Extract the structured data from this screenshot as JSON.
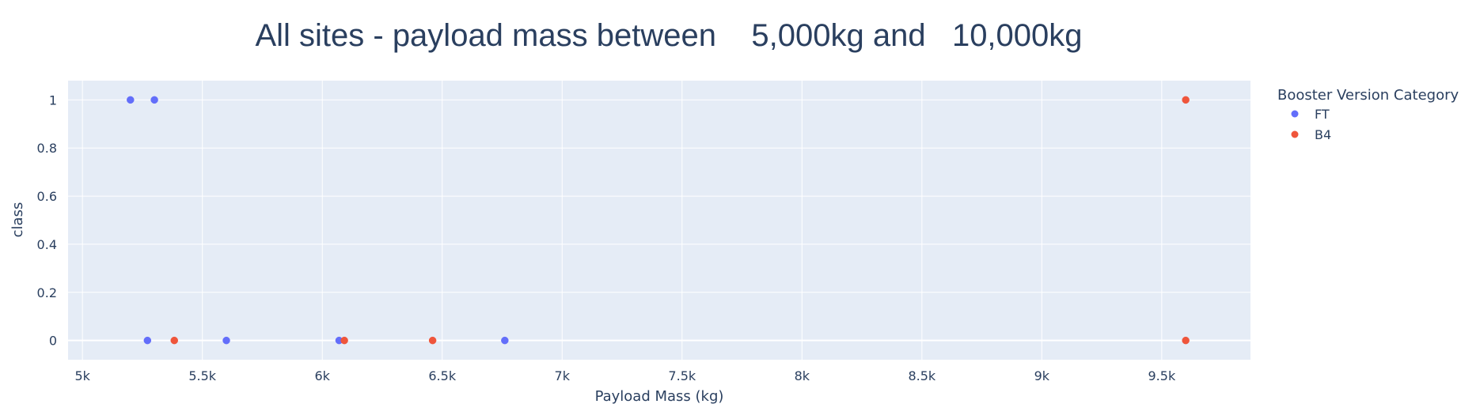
{
  "chart_data": {
    "type": "scatter",
    "title": "All sites - payload mass between    5,000kg and   10,000kg",
    "xlabel": "Payload Mass (kg)",
    "ylabel": "class",
    "xlim": [
      4940,
      9870
    ],
    "ylim": [
      -0.08,
      1.08
    ],
    "x_ticks": [
      5000,
      5500,
      6000,
      6500,
      7000,
      7500,
      8000,
      8500,
      9000,
      9500
    ],
    "x_tick_labels": [
      "5k",
      "5.5k",
      "6k",
      "6.5k",
      "7k",
      "7.5k",
      "8k",
      "8.5k",
      "9k",
      "9.5k"
    ],
    "y_ticks": [
      0,
      0.2,
      0.4,
      0.6,
      0.8,
      1
    ],
    "y_tick_labels": [
      "0",
      "0.2",
      "0.4",
      "0.6",
      "0.8",
      "1"
    ],
    "grid": true,
    "legend_title": "Booster Version Category",
    "legend_position": "right",
    "series": [
      {
        "name": "FT",
        "color": "#636efa",
        "points": [
          {
            "x": 5200,
            "y": 1
          },
          {
            "x": 5300,
            "y": 1
          },
          {
            "x": 5271,
            "y": 0
          },
          {
            "x": 5600,
            "y": 0
          },
          {
            "x": 6070,
            "y": 0
          },
          {
            "x": 6761,
            "y": 0
          }
        ]
      },
      {
        "name": "B4",
        "color": "#ef553b",
        "points": [
          {
            "x": 5383,
            "y": 0
          },
          {
            "x": 6092,
            "y": 0
          },
          {
            "x": 6460,
            "y": 0
          },
          {
            "x": 9600,
            "y": 1
          },
          {
            "x": 9600,
            "y": 0
          }
        ]
      }
    ]
  }
}
